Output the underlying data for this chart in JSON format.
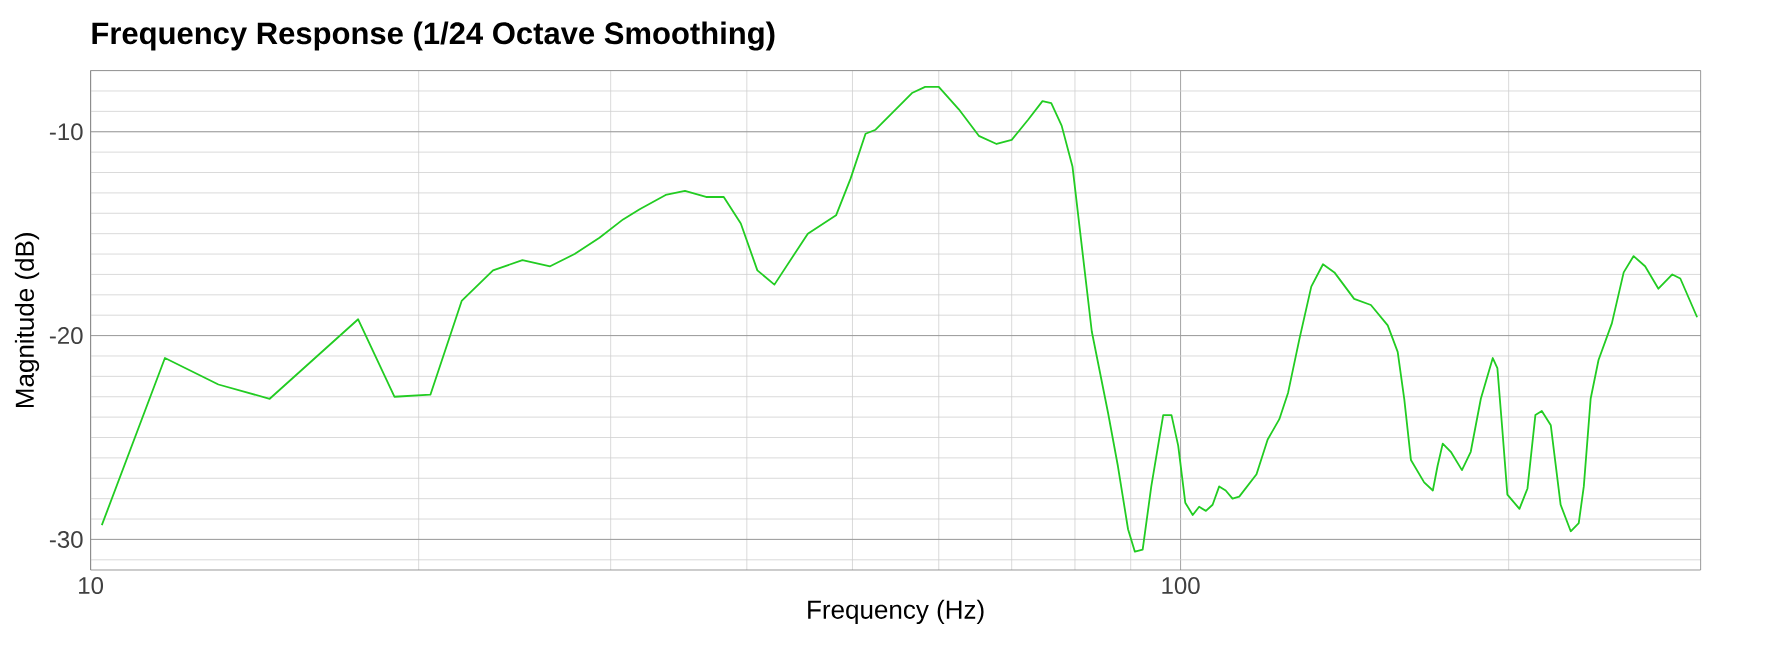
{
  "chart_data": {
    "type": "line",
    "title": "Frequency Response (1/24 Octave Smoothing)",
    "xlabel": "Frequency (Hz)",
    "ylabel": "Magnitude (dB)",
    "log": "x",
    "grid": true,
    "xlim": [
      10,
      300
    ],
    "ylim": [
      -31.5,
      -7
    ],
    "xticks": [
      10,
      100
    ],
    "yticks": [
      -30,
      -20,
      -10
    ],
    "series": [
      {
        "color": "#22cc22",
        "x": [
          10.24,
          11.7,
          13.1,
          14.6,
          17.6,
          19.0,
          20.5,
          21.9,
          23.4,
          24.9,
          26.4,
          27.8,
          29.3,
          30.8,
          31.9,
          33.7,
          35.1,
          36.7,
          38.1,
          39.5,
          40.9,
          42.4,
          45.5,
          48.3,
          49.8,
          51.4,
          52.5,
          56.7,
          58.3,
          60.0,
          62.6,
          65.3,
          67.8,
          70.0,
          72.5,
          74.7,
          76.1,
          77.8,
          79.6,
          82.9,
          85.8,
          87.6,
          89.5,
          90.8,
          92.3,
          94.0,
          96.4,
          98.1,
          99.5,
          101.0,
          102.6,
          104.0,
          105.5,
          107.0,
          108.5,
          110.0,
          111.6,
          113.2,
          117.4,
          120.2,
          123.2,
          125.5,
          128.5,
          131.8,
          135.1,
          138.4,
          144.3,
          149.5,
          154.9,
          158.2,
          160.4,
          162.7,
          167.3,
          170.4,
          172.1,
          174.0,
          177.0,
          181.2,
          184.6,
          188.6,
          193.4,
          195.3,
          197.2,
          199.5,
          204.6,
          208.1,
          211.6,
          214.5,
          218.6,
          223.2,
          228.0,
          231.9,
          234.4,
          237.8,
          241.8,
          248.7,
          255.0,
          260.4,
          266.8,
          274.4,
          282.6,
          287.4,
          297.8
        ],
        "values": [
          -29.3,
          -21.1,
          -22.4,
          -23.1,
          -19.2,
          -23.0,
          -22.9,
          -18.3,
          -16.8,
          -16.3,
          -16.6,
          -16.0,
          -15.2,
          -14.3,
          -13.8,
          -13.1,
          -12.9,
          -13.2,
          -13.2,
          -14.5,
          -16.8,
          -17.5,
          -15.0,
          -14.1,
          -12.3,
          -10.1,
          -9.9,
          -8.1,
          -7.8,
          -7.8,
          -8.9,
          -10.2,
          -10.6,
          -10.4,
          -9.4,
          -8.5,
          -8.6,
          -9.7,
          -11.7,
          -19.8,
          -23.8,
          -26.4,
          -29.5,
          -30.6,
          -30.5,
          -27.4,
          -23.9,
          -23.9,
          -25.4,
          -28.2,
          -28.8,
          -28.4,
          -28.6,
          -28.3,
          -27.4,
          -27.6,
          -28.0,
          -27.9,
          -26.8,
          -25.1,
          -24.1,
          -22.8,
          -20.2,
          -17.6,
          -16.5,
          -16.9,
          -18.2,
          -18.5,
          -19.5,
          -20.8,
          -23.1,
          -26.1,
          -27.2,
          -27.6,
          -26.4,
          -25.3,
          -25.7,
          -26.6,
          -25.7,
          -23.1,
          -21.1,
          -21.6,
          -24.4,
          -27.8,
          -28.5,
          -27.5,
          -23.9,
          -23.7,
          -24.4,
          -28.3,
          -29.6,
          -29.2,
          -27.4,
          -23.1,
          -21.2,
          -19.4,
          -16.9,
          -16.1,
          -16.6,
          -17.7,
          -17.0,
          -17.2,
          -19.1
        ]
      }
    ]
  }
}
